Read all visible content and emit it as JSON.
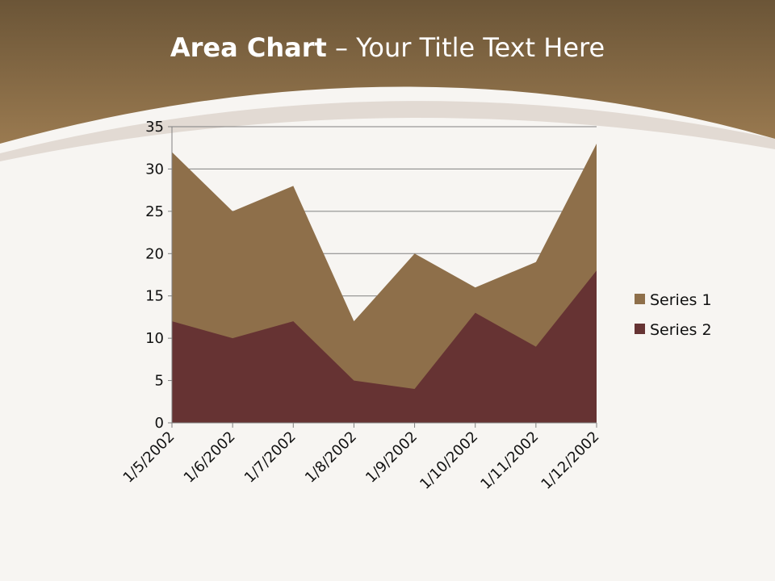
{
  "slide": {
    "title_bold": "Area Chart",
    "title_rest": " – Your Title Text Here"
  },
  "chart_data": {
    "type": "area",
    "categories": [
      "1/5/2002",
      "1/6/2002",
      "1/7/2002",
      "1/8/2002",
      "1/9/2002",
      "1/10/2002",
      "1/11/2002",
      "1/12/2002"
    ],
    "series": [
      {
        "name": "Series 1",
        "values": [
          32,
          25,
          28,
          12,
          20,
          16,
          19,
          33
        ],
        "color": "#8E6F4A"
      },
      {
        "name": "Series 2",
        "values": [
          12,
          10,
          12,
          5,
          4,
          13,
          9,
          18
        ],
        "color": "#663333"
      }
    ],
    "ylim": [
      0,
      35
    ],
    "yticks": [
      0,
      5,
      10,
      15,
      20,
      25,
      30,
      35
    ],
    "grid": true,
    "legend": "right"
  }
}
